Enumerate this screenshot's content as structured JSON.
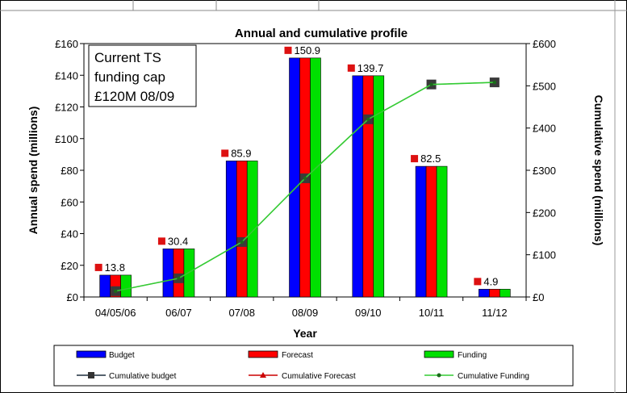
{
  "chart_data": {
    "type": "bar",
    "title": "Annual and cumulative profile",
    "xlabel": "Year",
    "ylabel": "Annual spend (millions)",
    "y2label": "Cumulative spend (millions)",
    "categories": [
      "04/05/06",
      "06/07",
      "07/08",
      "08/09",
      "09/10",
      "10/11",
      "11/12"
    ],
    "ylim": [
      0,
      160
    ],
    "y2lim": [
      0,
      600
    ],
    "yticks": [
      "£0",
      "£20",
      "£40",
      "£60",
      "£80",
      "£100",
      "£120",
      "£140",
      "£160"
    ],
    "y2ticks": [
      "£0",
      "£100",
      "£200",
      "£300",
      "£400",
      "£500",
      "£600"
    ],
    "series": [
      {
        "name": "Budget",
        "kind": "bar",
        "color": "#0000ff",
        "values": [
          13.8,
          30.4,
          85.9,
          150.9,
          139.7,
          82.5,
          4.9
        ]
      },
      {
        "name": "Forecast",
        "kind": "bar",
        "color": "#ff0000",
        "values": [
          13.8,
          30.4,
          85.9,
          150.9,
          139.7,
          82.5,
          4.9
        ]
      },
      {
        "name": "Funding",
        "kind": "bar",
        "color": "#00e000",
        "values": [
          13.8,
          30.4,
          85.9,
          150.9,
          139.7,
          82.5,
          4.9
        ]
      },
      {
        "name": "Cumulative budget",
        "kind": "line",
        "axis": "right",
        "color": "#1f2f3f",
        "values": [
          13.8,
          44.2,
          130.1,
          281.0,
          420.7,
          503.2,
          508.1
        ]
      },
      {
        "name": "Cumulative Forecast",
        "kind": "line",
        "axis": "right",
        "color": "#cc0000",
        "values": [
          13.8,
          44.2,
          130.1,
          281.0,
          420.7,
          503.2,
          508.1
        ]
      },
      {
        "name": "Cumulative Funding",
        "kind": "line",
        "axis": "right",
        "color": "#33cc33",
        "values": [
          13.8,
          44.2,
          130.1,
          281.0,
          420.7,
          503.2,
          508.1
        ]
      }
    ],
    "data_labels": [
      "13.8",
      "30.4",
      "85.9",
      "150.9",
      "139.7",
      "82.5",
      "4.9"
    ],
    "annotation": [
      "Current TS",
      "funding cap",
      "£120M 08/09"
    ],
    "legend_position": "bottom",
    "grid": false
  }
}
